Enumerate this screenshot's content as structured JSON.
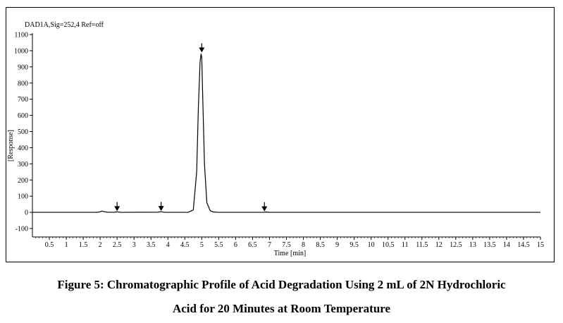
{
  "chart_data": {
    "type": "line",
    "signal_label": "DAD1A,Sig=252,4  Ref=off",
    "xlabel": "Time [min]",
    "ylabel": "[Response]",
    "xlim": [
      0,
      15
    ],
    "ylim": [
      -100,
      1100
    ],
    "x_ticks": [
      "0.5",
      "1",
      "1.5",
      "2",
      "2.5",
      "3",
      "3.5",
      "4",
      "4.5",
      "5",
      "5.5",
      "6",
      "6.5",
      "7",
      "7.5",
      "8",
      "8.5",
      "9",
      "9.5",
      "10",
      "10.5",
      "11",
      "11.5",
      "12",
      "12.5",
      "13",
      "13.5",
      "14",
      "14.5",
      "15"
    ],
    "y_ticks": [
      "-100",
      "0",
      "100",
      "200",
      "300",
      "400",
      "500",
      "600",
      "700",
      "800",
      "900",
      "1000",
      "1100"
    ],
    "grid": false,
    "series": [
      {
        "x": [
          0,
          1.9,
          2.0,
          2.05,
          2.1,
          2.2,
          2.4,
          2.5,
          2.6,
          3.7,
          3.8,
          3.9,
          4.6,
          4.75,
          4.85,
          4.9,
          4.95,
          4.98,
          5.0,
          5.03,
          5.08,
          5.15,
          5.25,
          5.35,
          5.5,
          6.8,
          6.9,
          7.0,
          15.0
        ],
        "y": [
          0,
          0,
          3,
          8,
          5,
          1,
          0,
          3,
          0,
          1,
          4,
          0,
          0,
          15,
          250,
          650,
          930,
          980,
          960,
          700,
          300,
          60,
          10,
          2,
          0,
          0,
          2,
          0,
          0
        ]
      }
    ],
    "peak_markers": [
      {
        "x": 2.5,
        "y": 3
      },
      {
        "x": 3.8,
        "y": 4
      },
      {
        "x": 5.0,
        "y": 985
      },
      {
        "x": 6.85,
        "y": 2
      }
    ]
  },
  "caption": {
    "line1": "Figure 5: Chromatographic Profile of Acid Degradation Using 2 mL of 2N Hydrochloric",
    "line2": "Acid for 20 Minutes at Room Temperature"
  }
}
